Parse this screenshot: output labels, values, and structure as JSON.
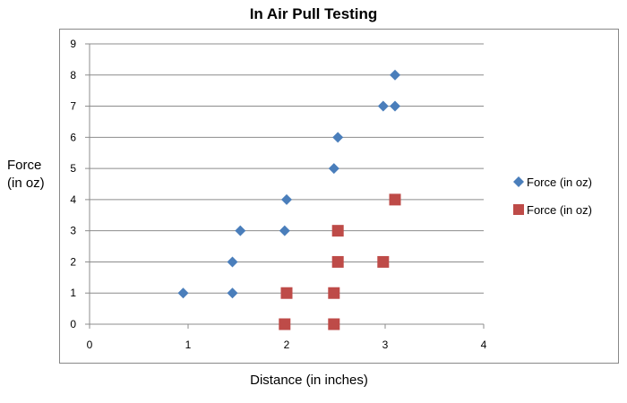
{
  "chart_data": {
    "type": "scatter",
    "title": "In Air Pull Testing",
    "xlabel": "Distance (in inches)",
    "ylabel": [
      "Force",
      "(in oz)"
    ],
    "xlim": [
      0,
      4
    ],
    "ylim": [
      0,
      9
    ],
    "x_ticks": [
      "0",
      "1",
      "2",
      "3",
      "4"
    ],
    "y_ticks": [
      "0",
      "1",
      "2",
      "3",
      "4",
      "5",
      "6",
      "7",
      "8",
      "9"
    ],
    "grid": "horizontal",
    "legend_position": "right",
    "series": [
      {
        "name": "Force (in oz)",
        "marker": "diamond",
        "color": "#4a7ebb",
        "points": [
          {
            "x": 0.95,
            "y": 1
          },
          {
            "x": 1.45,
            "y": 1
          },
          {
            "x": 1.45,
            "y": 2
          },
          {
            "x": 1.53,
            "y": 3
          },
          {
            "x": 1.98,
            "y": 3
          },
          {
            "x": 2.0,
            "y": 4
          },
          {
            "x": 2.48,
            "y": 5
          },
          {
            "x": 2.52,
            "y": 6
          },
          {
            "x": 2.98,
            "y": 7
          },
          {
            "x": 3.1,
            "y": 7
          },
          {
            "x": 3.1,
            "y": 8
          }
        ]
      },
      {
        "name": "Force (in oz)",
        "marker": "square",
        "color": "#be4b48",
        "points": [
          {
            "x": 1.98,
            "y": 0
          },
          {
            "x": 2.48,
            "y": 0
          },
          {
            "x": 2.0,
            "y": 1
          },
          {
            "x": 2.48,
            "y": 1
          },
          {
            "x": 2.52,
            "y": 2
          },
          {
            "x": 2.98,
            "y": 2
          },
          {
            "x": 2.52,
            "y": 3
          },
          {
            "x": 3.1,
            "y": 4
          }
        ]
      }
    ]
  }
}
